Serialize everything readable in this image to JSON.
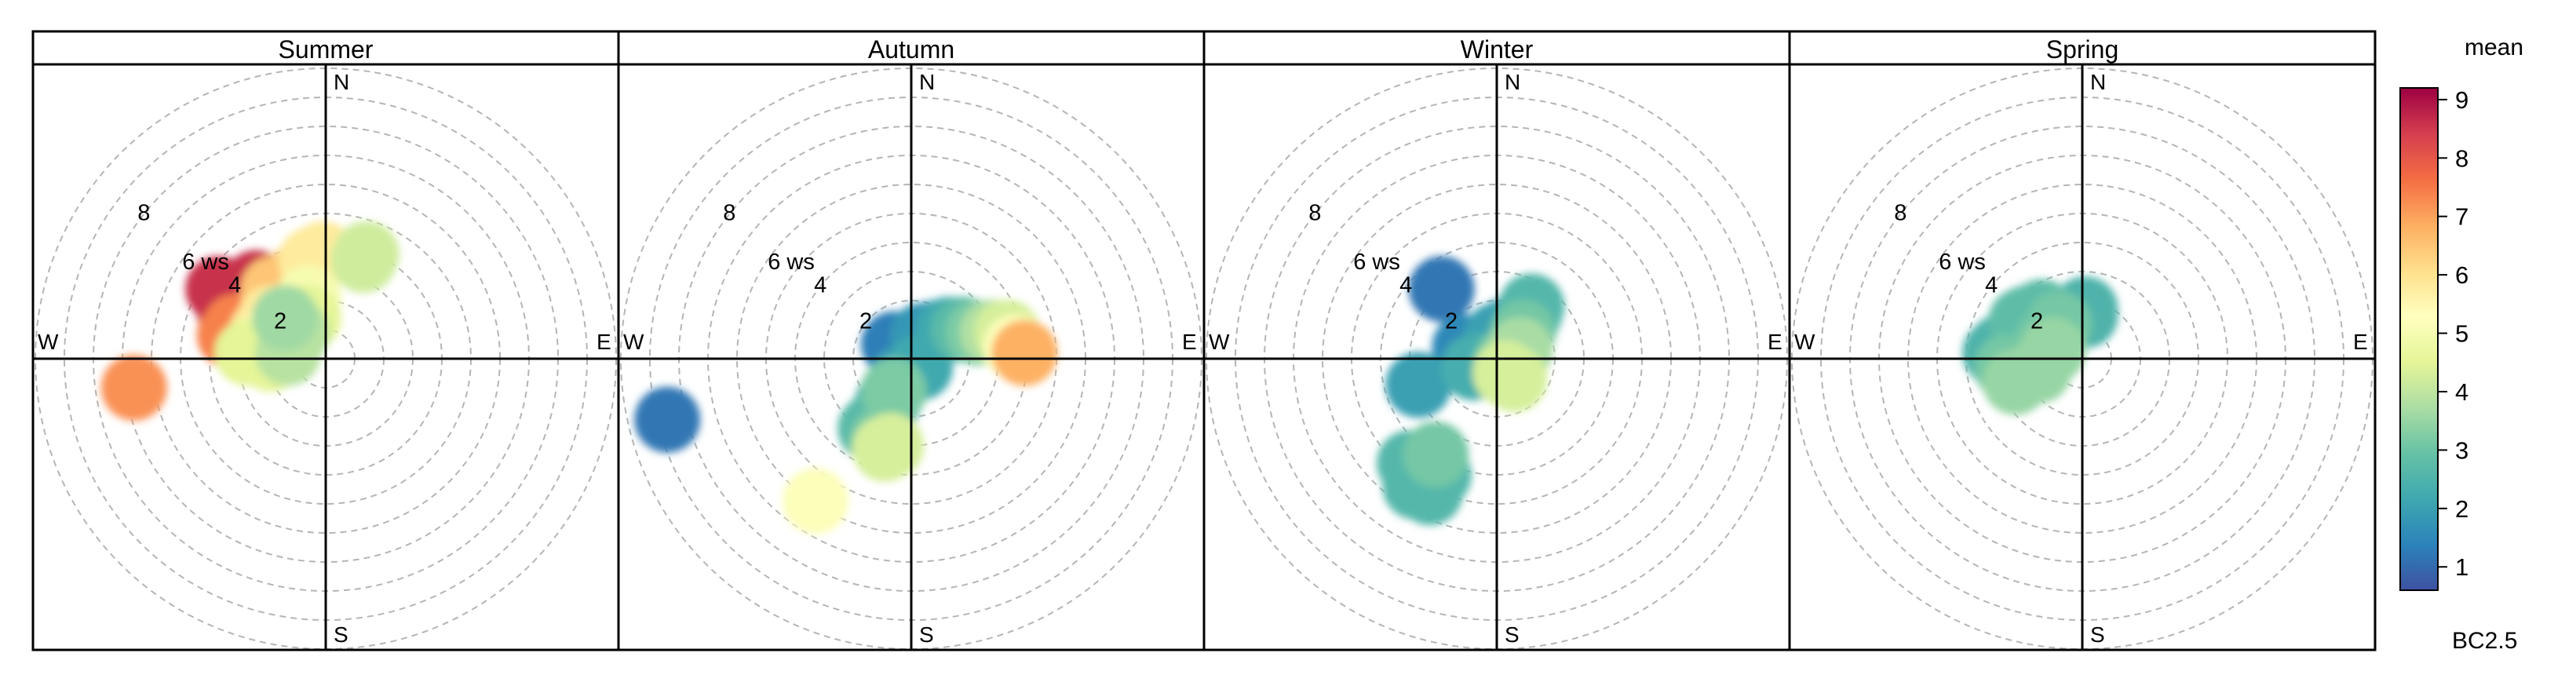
{
  "chart_data": {
    "type": "polar-plot",
    "panels": [
      {
        "title": "Summer",
        "clusters": [
          {
            "value": 8.6,
            "points": [
              [
                -3.7,
                2.4
              ],
              [
                -3.1,
                2.3
              ],
              [
                -3.3,
                1.6
              ],
              [
                -2.6,
                2.0
              ],
              [
                -2.4,
                2.6
              ]
            ]
          },
          {
            "value": 7.4,
            "points": [
              [
                -3.1,
                1.1
              ],
              [
                -2.4,
                1.2
              ],
              [
                -3.3,
                0.8
              ]
            ]
          },
          {
            "value": 6.5,
            "points": [
              [
                -1.8,
                2.4
              ],
              [
                -1.3,
                2.6
              ],
              [
                -0.9,
                2.9
              ],
              [
                -1.5,
                1.9
              ]
            ]
          },
          {
            "value": 5.8,
            "points": [
              [
                -1.9,
                1.4
              ],
              [
                -2.2,
                0.9
              ],
              [
                -0.5,
                3.4
              ],
              [
                -0.1,
                3.6
              ]
            ]
          },
          {
            "value": 5.0,
            "points": [
              [
                -2.5,
                0.3
              ],
              [
                -1.8,
                0.8
              ],
              [
                -1.1,
                1.5
              ],
              [
                -0.6,
                2.1
              ]
            ]
          },
          {
            "value": 4.5,
            "points": [
              [
                -1.9,
                0.0
              ],
              [
                -2.7,
                0.2
              ],
              [
                -1.2,
                0.6
              ],
              [
                -0.6,
                1.4
              ]
            ]
          },
          {
            "value": 4.2,
            "points": [
              [
                1.3,
                3.4
              ],
              [
                1.4,
                3.6
              ]
            ]
          },
          {
            "value": 3.9,
            "points": [
              [
                -1.3,
                0.2
              ],
              [
                -1.0,
                0.9
              ]
            ]
          },
          {
            "value": 3.6,
            "points": [
              [
                -1.4,
                1.4
              ]
            ]
          },
          {
            "value": 7.2,
            "points": [
              [
                -6.6,
                -1.0
              ]
            ]
          }
        ]
      },
      {
        "title": "Autumn",
        "clusters": [
          {
            "value": 1.2,
            "points": [
              [
                -8.4,
                -2.1
              ]
            ]
          },
          {
            "value": 1.3,
            "points": [
              [
                -0.6,
                0.5
              ],
              [
                -0.3,
                0.2
              ]
            ]
          },
          {
            "value": 1.8,
            "points": [
              [
                -0.3,
                -0.6
              ],
              [
                0.4,
                0.8
              ],
              [
                0.9,
                0.9
              ]
            ]
          },
          {
            "value": 2.2,
            "points": [
              [
                1.3,
                1.0
              ],
              [
                0.3,
                -0.3
              ],
              [
                -0.8,
                -1.5
              ]
            ]
          },
          {
            "value": 2.7,
            "points": [
              [
                1.8,
                1.0
              ],
              [
                -1.2,
                -2.2
              ],
              [
                -1.4,
                -2.4
              ]
            ]
          },
          {
            "value": 3.2,
            "points": [
              [
                2.3,
                0.9
              ],
              [
                -0.6,
                -1.1
              ],
              [
                -1.0,
                -2.8
              ]
            ]
          },
          {
            "value": 3.8,
            "points": [
              [
                2.8,
                0.9
              ]
            ]
          },
          {
            "value": 4.3,
            "points": [
              [
                3.3,
                0.9
              ],
              [
                -0.7,
                -3.0
              ],
              [
                -0.9,
                -3.1
              ]
            ]
          },
          {
            "value": 5.2,
            "points": [
              [
                3.6,
                0.4
              ],
              [
                -3.3,
                -4.9
              ]
            ]
          },
          {
            "value": 6.8,
            "points": [
              [
                3.9,
                0.2
              ]
            ]
          }
        ]
      },
      {
        "title": "Winter",
        "clusters": [
          {
            "value": 1.2,
            "points": [
              [
                -1.9,
                2.4
              ]
            ]
          },
          {
            "value": 1.5,
            "points": [
              [
                -1.1,
                0.4
              ],
              [
                -0.7,
                0.3
              ],
              [
                -0.4,
                0.4
              ]
            ]
          },
          {
            "value": 2.0,
            "points": [
              [
                0.0,
                0.8
              ],
              [
                0.4,
                1.0
              ],
              [
                -2.7,
                -0.9
              ]
            ]
          },
          {
            "value": 2.3,
            "points": [
              [
                -0.8,
                -0.3
              ],
              [
                -0.3,
                -0.2
              ]
            ]
          },
          {
            "value": 2.6,
            "points": [
              [
                1.1,
                1.5
              ],
              [
                1.2,
                1.8
              ],
              [
                -3.0,
                -3.6
              ],
              [
                -2.6,
                -3.8
              ],
              [
                -2.0,
                -4.0
              ],
              [
                -2.3,
                -4.6
              ],
              [
                -2.8,
                -4.4
              ]
            ]
          },
          {
            "value": 3.1,
            "points": [
              [
                0.9,
                0.9
              ],
              [
                0.3,
                -0.1
              ],
              [
                -2.1,
                -3.3
              ]
            ]
          },
          {
            "value": 3.7,
            "points": [
              [
                0.8,
                0.3
              ],
              [
                0.5,
                -0.4
              ]
            ]
          },
          {
            "value": 4.3,
            "points": [
              [
                0.6,
                -0.7
              ],
              [
                0.3,
                -0.5
              ]
            ]
          }
        ]
      },
      {
        "title": "Spring",
        "clusters": [
          {
            "value": 2.5,
            "points": [
              [
                -3.0,
                0.2
              ],
              [
                -2.8,
                0.4
              ],
              [
                -2.2,
                0.0
              ],
              [
                -2.3,
                0.8
              ],
              [
                0.1,
                1.5
              ],
              [
                0.1,
                1.7
              ]
            ]
          },
          {
            "value": 2.8,
            "points": [
              [
                -1.9,
                1.4
              ],
              [
                -1.4,
                1.6
              ],
              [
                -1.6,
                1.0
              ],
              [
                -2.1,
                1.3
              ]
            ]
          },
          {
            "value": 3.1,
            "points": [
              [
                -2.6,
                -0.3
              ],
              [
                -1.9,
                -0.2
              ],
              [
                -1.2,
                0.6
              ],
              [
                -0.8,
                1.2
              ]
            ]
          },
          {
            "value": 3.5,
            "points": [
              [
                -2.3,
                -0.8
              ],
              [
                -1.5,
                -0.4
              ],
              [
                -1.0,
                0.3
              ]
            ]
          }
        ]
      }
    ],
    "radial_ticks": [
      {
        "r": 2,
        "label": "2"
      },
      {
        "r": 4,
        "label": "4"
      },
      {
        "r": 6,
        "label": "6 ws"
      },
      {
        "r": 8,
        "label": "8"
      }
    ],
    "compass_labels": {
      "north": "N",
      "south": "S",
      "east": "E",
      "west": "W"
    },
    "colorbar": {
      "title": "mean",
      "subtitle": "BC2.5",
      "range": [
        0.6,
        9.2
      ],
      "ticks": [
        "1",
        "2",
        "3",
        "4",
        "5",
        "6",
        "7",
        "8",
        "9"
      ],
      "colors": [
        "#3f51a2",
        "#2b83ba",
        "#3fa8b0",
        "#66c2a5",
        "#abdda4",
        "#e6f598",
        "#ffffbf",
        "#fee08b",
        "#fdae61",
        "#f46d43",
        "#d53e4f",
        "#9e0142"
      ]
    }
  }
}
